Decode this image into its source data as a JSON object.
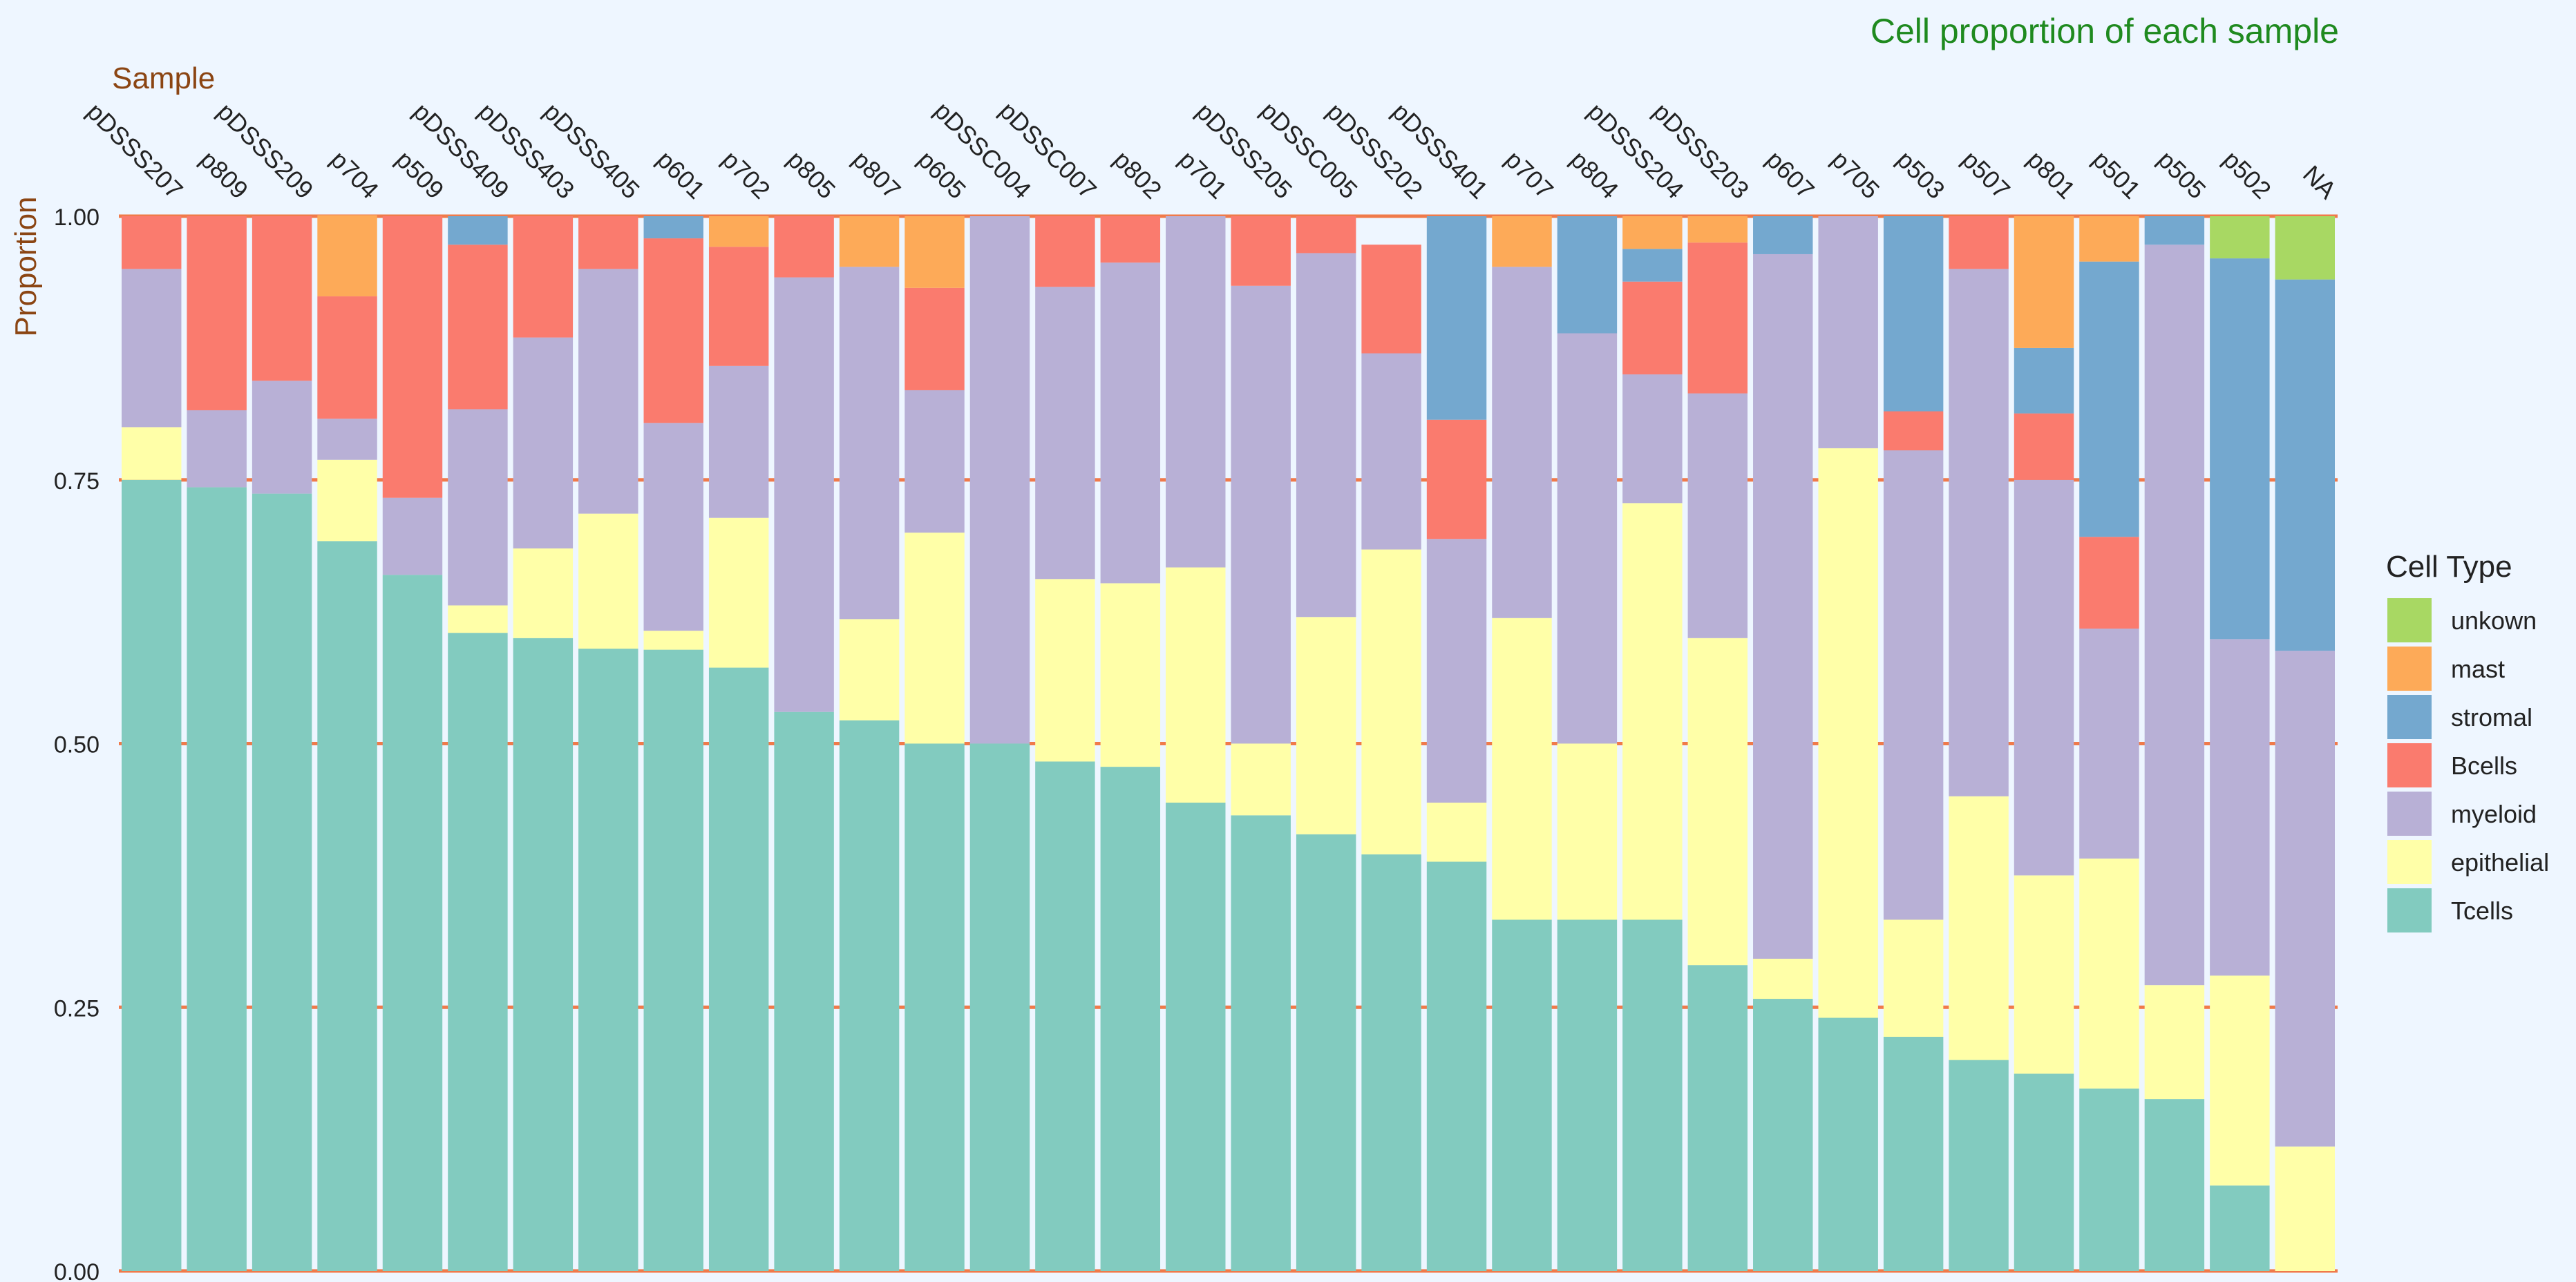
{
  "chart_data": {
    "type": "bar",
    "stacked": true,
    "title": "Cell proportion of each sample",
    "xlabel": "Sample",
    "ylabel": "Proportion",
    "ylim": [
      0,
      1
    ],
    "yticks": [
      "0.00",
      "0.25",
      "0.50",
      "0.75",
      "1.00"
    ],
    "grid": true,
    "legend_position": "right",
    "legend_title": "Cell Type",
    "legend_items": [
      "unkown",
      "mast",
      "stromal",
      "Bcells",
      "myeloid",
      "epithelial",
      "Tcells"
    ],
    "categories": [
      "pDSSS207",
      "p809",
      "pDSSS209",
      "p704",
      "p509",
      "pDSSS409",
      "pDSSS403",
      "pDSSS405",
      "p601",
      "p702",
      "p805",
      "p807",
      "p605",
      "pDSSC004",
      "pDSSC007",
      "p802",
      "p701",
      "pDSSS205",
      "pDSSC005",
      "pDSSS202",
      "pDSSS401",
      "p707",
      "p804",
      "pDSSS204",
      "pDSSS203",
      "p607",
      "p705",
      "p503",
      "p507",
      "p801",
      "p501",
      "p505",
      "p502",
      "NA"
    ],
    "series": [
      {
        "name": "Tcells",
        "color": "#82cbbf",
        "values": [
          0.75,
          0.743,
          0.737,
          0.692,
          0.66,
          0.605,
          0.6,
          0.59,
          0.589,
          0.572,
          0.53,
          0.522,
          0.5,
          0.5,
          0.483,
          0.478,
          0.444,
          0.432,
          0.414,
          0.395,
          0.388,
          0.333,
          0.333,
          0.333,
          0.29,
          0.258,
          0.24,
          0.222,
          0.2,
          0.187,
          0.173,
          0.163,
          0.081,
          0.0
        ]
      },
      {
        "name": "epithelial",
        "color": "#ffffa8",
        "values": [
          0.05,
          0.0,
          0.0,
          0.077,
          0.0,
          0.026,
          0.085,
          0.128,
          0.018,
          0.142,
          0.0,
          0.096,
          0.2,
          0.0,
          0.173,
          0.174,
          0.223,
          0.068,
          0.206,
          0.289,
          0.056,
          0.286,
          0.167,
          0.395,
          0.31,
          0.038,
          0.54,
          0.111,
          0.25,
          0.188,
          0.218,
          0.108,
          0.199,
          0.118
        ]
      },
      {
        "name": "myeloid",
        "color": "#b8b0d6",
        "values": [
          0.15,
          0.073,
          0.107,
          0.039,
          0.073,
          0.186,
          0.2,
          0.232,
          0.197,
          0.144,
          0.412,
          0.334,
          0.135,
          0.5,
          0.277,
          0.304,
          0.333,
          0.434,
          0.345,
          0.186,
          0.25,
          0.333,
          0.389,
          0.122,
          0.232,
          0.668,
          0.22,
          0.445,
          0.5,
          0.375,
          0.218,
          0.702,
          0.319,
          0.47
        ]
      },
      {
        "name": "Bcells",
        "color": "#fa7b6e",
        "values": [
          0.05,
          0.184,
          0.156,
          0.116,
          0.267,
          0.156,
          0.115,
          0.05,
          0.175,
          0.113,
          0.058,
          0.0,
          0.097,
          0.0,
          0.067,
          0.044,
          0.0,
          0.066,
          0.035,
          0.103,
          0.113,
          0.0,
          0.0,
          0.088,
          0.143,
          0.0,
          0.0,
          0.037,
          0.05,
          0.063,
          0.087,
          0.0,
          0.0,
          0.0
        ]
      },
      {
        "name": "stromal",
        "color": "#74a8cf",
        "values": [
          0.0,
          0.0,
          0.0,
          0.0,
          0.0,
          0.027,
          0.0,
          0.0,
          0.021,
          0.0,
          0.0,
          0.0,
          0.0,
          0.0,
          0.0,
          0.0,
          0.0,
          0.0,
          0.0,
          0.0,
          0.193,
          0.0,
          0.111,
          0.031,
          0.0,
          0.036,
          0.0,
          0.185,
          0.0,
          0.062,
          0.261,
          0.027,
          0.361,
          0.352
        ]
      },
      {
        "name": "mast",
        "color": "#fdaa58",
        "values": [
          0.0,
          0.0,
          0.0,
          0.077,
          0.0,
          0.0,
          0.0,
          0.0,
          0.0,
          0.029,
          0.0,
          0.048,
          0.068,
          0.0,
          0.0,
          0.0,
          0.0,
          0.0,
          0.0,
          0.0,
          0.0,
          0.048,
          0.0,
          0.031,
          0.025,
          0.0,
          0.0,
          0.0,
          0.0,
          0.125,
          0.043,
          0.0,
          0.0,
          0.0
        ]
      },
      {
        "name": "unkown",
        "color": "#a8d863",
        "values": [
          0.0,
          0.0,
          0.0,
          0.0,
          0.0,
          0.0,
          0.0,
          0.0,
          0.0,
          0.0,
          0.0,
          0.0,
          0.0,
          0.0,
          0.0,
          0.0,
          0.0,
          0.0,
          0.0,
          0.0,
          0.0,
          0.0,
          0.0,
          0.0,
          0.0,
          0.0,
          0.0,
          0.0,
          0.0,
          0.0,
          0.0,
          0.0,
          0.04,
          0.06
        ]
      }
    ],
    "colors": {
      "title": "#1f8a1f",
      "axis_title": "#8b4513",
      "grid": "#f07a4a",
      "text": "#222222",
      "background": "#eef6ff"
    }
  }
}
